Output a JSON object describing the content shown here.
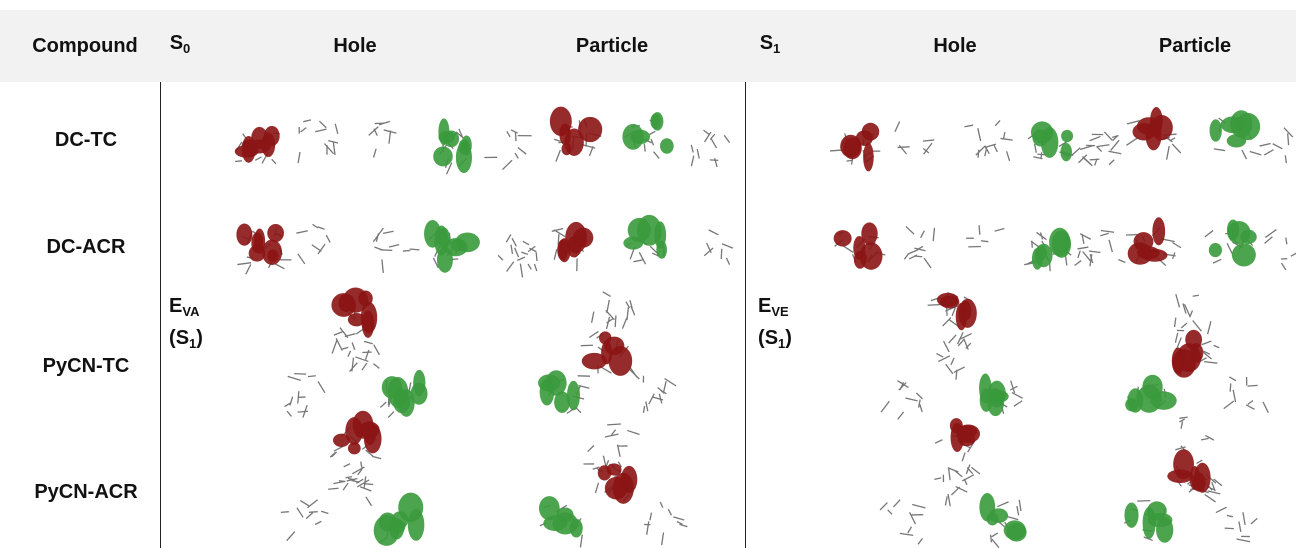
{
  "header": {
    "cells": [
      {
        "text": "Compound"
      },
      {
        "main": "S",
        "sub": "0"
      },
      {
        "text": "Hole"
      },
      {
        "text": "Particle"
      },
      {
        "main": "S",
        "sub": "1"
      },
      {
        "text": "Hole"
      },
      {
        "text": "Particle"
      }
    ]
  },
  "rows": [
    "DC-TC",
    "DC-ACR",
    "PyCN-TC",
    "PyCN-ACR"
  ],
  "state_labels": [
    {
      "main": "E",
      "sub": "VA",
      "paren_open": "(S",
      "paren_sub": "1",
      "paren_close": ")"
    },
    {
      "main": "E",
      "sub": "VE",
      "paren_open": "(S",
      "paren_sub": "1",
      "paren_close": ")"
    }
  ]
}
